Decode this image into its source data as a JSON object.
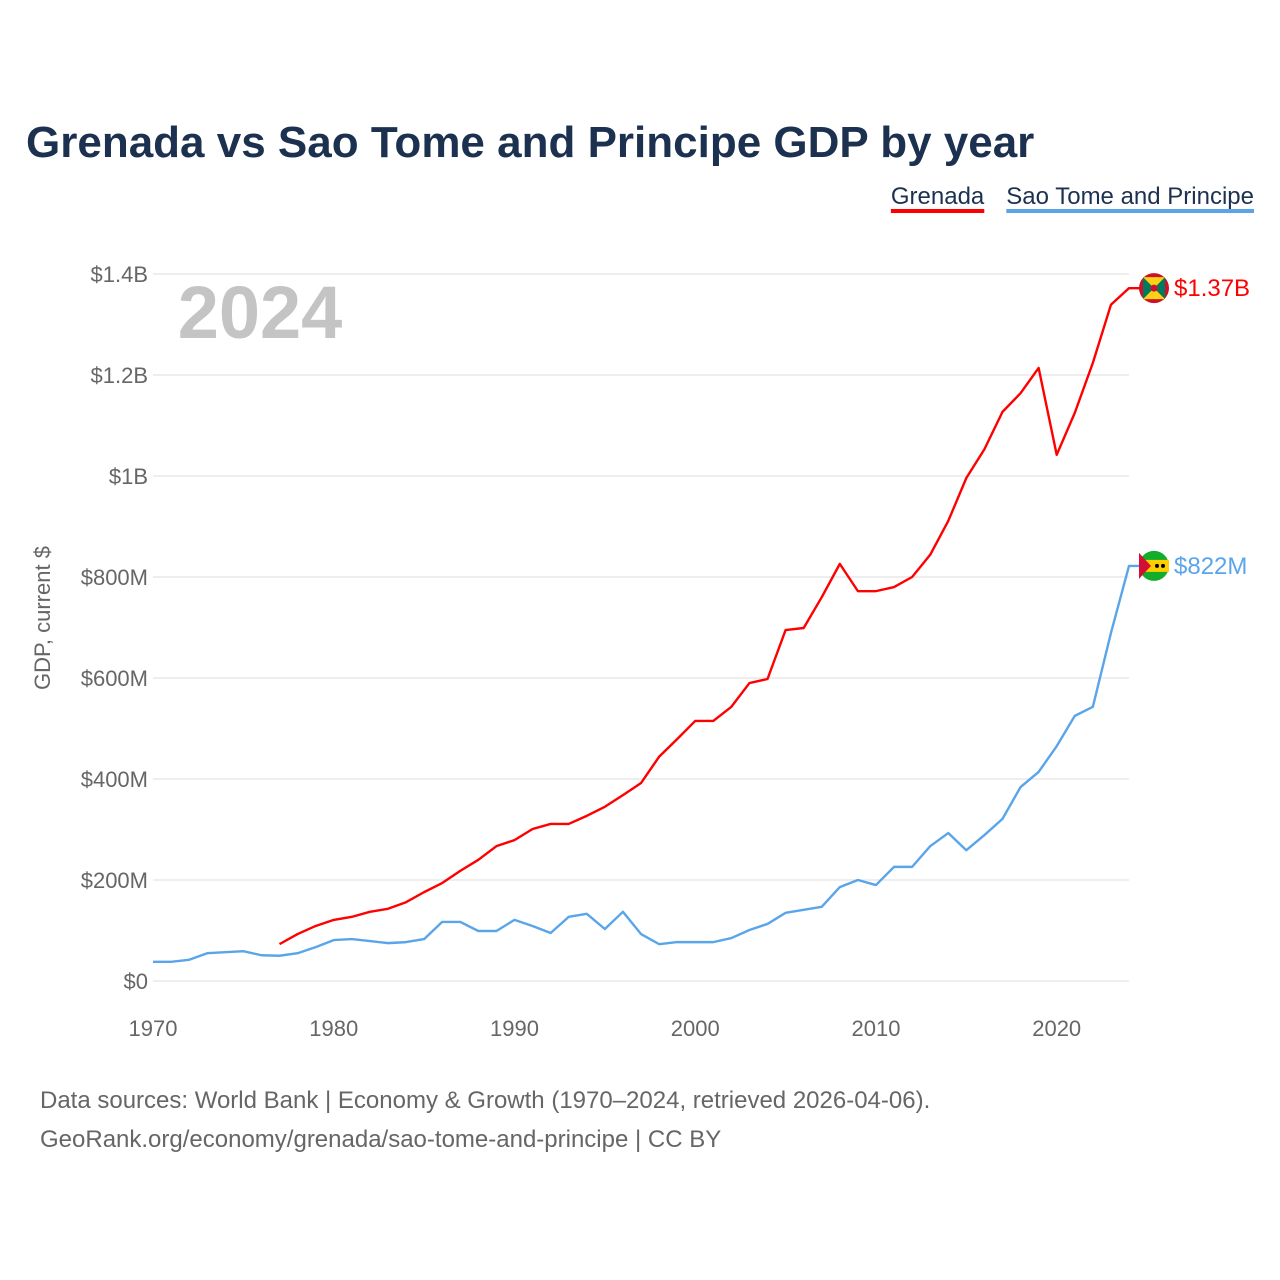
{
  "chart_data": {
    "type": "line",
    "title": "Grenada vs Sao Tome and Principe GDP by year",
    "ylabel": "GDP, current $",
    "xlabel": "",
    "year_overlay": "2024",
    "xlim": [
      1970,
      2024
    ],
    "ylim": [
      0,
      1400
    ],
    "y_unit": "million USD",
    "x_ticks": [
      1970,
      1980,
      1990,
      2000,
      2010,
      2020
    ],
    "x_tick_labels": [
      "1970",
      "1980",
      "1990",
      "2000",
      "2010",
      "2020"
    ],
    "y_ticks": [
      0,
      200,
      400,
      600,
      800,
      1000,
      1200,
      1400
    ],
    "y_tick_labels": [
      "$0",
      "$200M",
      "$400M",
      "$600M",
      "$800M",
      "$1B",
      "$1.2B",
      "$1.4B"
    ],
    "grid": true,
    "legend_position": "top-right",
    "series": [
      {
        "name": "Grenada",
        "color": "#ff0000",
        "end_label": "$1.37B",
        "flag": "grenada-flag",
        "start": 1977,
        "values": [
          73,
          93,
          109,
          121,
          127,
          137,
          143,
          156,
          176,
          194,
          218,
          240,
          267,
          279,
          301,
          311,
          311,
          327,
          345,
          368,
          392,
          444,
          479,
          515,
          515,
          543,
          590,
          598,
          695,
          699,
          760,
          826,
          772,
          772,
          780,
          800,
          844,
          911,
          996,
          1053,
          1127,
          1164,
          1214,
          1042,
          1125,
          1224,
          1339,
          1372
        ]
      },
      {
        "name": "Sao Tome and Principe",
        "color": "#5aa5ea",
        "end_label": "$822M",
        "flag": "sao-tome-flag",
        "start": 1970,
        "values": [
          38,
          38,
          42,
          55,
          57,
          59,
          51,
          50,
          55,
          67,
          81,
          83,
          79,
          75,
          77,
          83,
          117,
          117,
          99,
          99,
          121,
          109,
          95,
          127,
          133,
          103,
          137,
          93,
          73,
          77,
          77,
          77,
          85,
          101,
          113,
          135,
          141,
          147,
          186,
          200,
          190,
          226,
          226,
          267,
          293,
          259,
          289,
          321,
          384,
          414,
          465,
          525,
          543,
          689,
          822
        ]
      }
    ]
  },
  "footer": {
    "line1": "Data sources: World Bank | Economy & Growth (1970–2024, retrieved 2026-04-06).",
    "line2": "GeoRank.org/economy/grenada/sao-tome-and-principe | CC BY"
  }
}
